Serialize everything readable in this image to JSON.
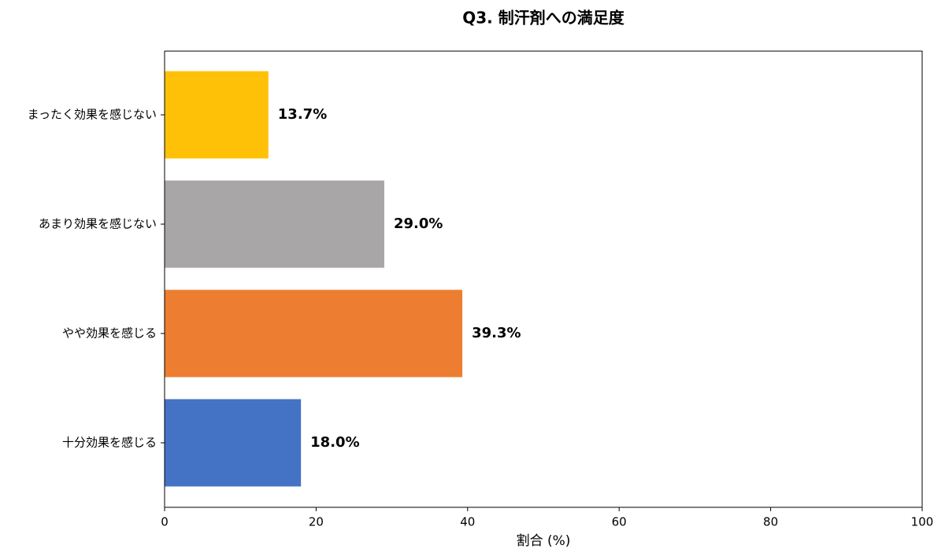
{
  "chart_data": {
    "type": "barh",
    "title": "Q3. 制汗剤への満足度",
    "categories": [
      "まったく効果を感じない",
      "あまり効果を感じない",
      "やや効果を感じる",
      "十分効果を感じる"
    ],
    "values": [
      13.7,
      29.0,
      39.3,
      18.0
    ],
    "value_labels": [
      "13.7%",
      "29.0%",
      "39.3%",
      "18.0%"
    ],
    "colors": [
      "#ffc107",
      "#a9a6a8",
      "#ed7d31",
      "#4472c4"
    ],
    "xlabel": "割合 (%)",
    "xlim": [
      0,
      100
    ],
    "xticks": [
      0,
      20,
      40,
      60,
      80,
      100
    ],
    "grid": false
  }
}
